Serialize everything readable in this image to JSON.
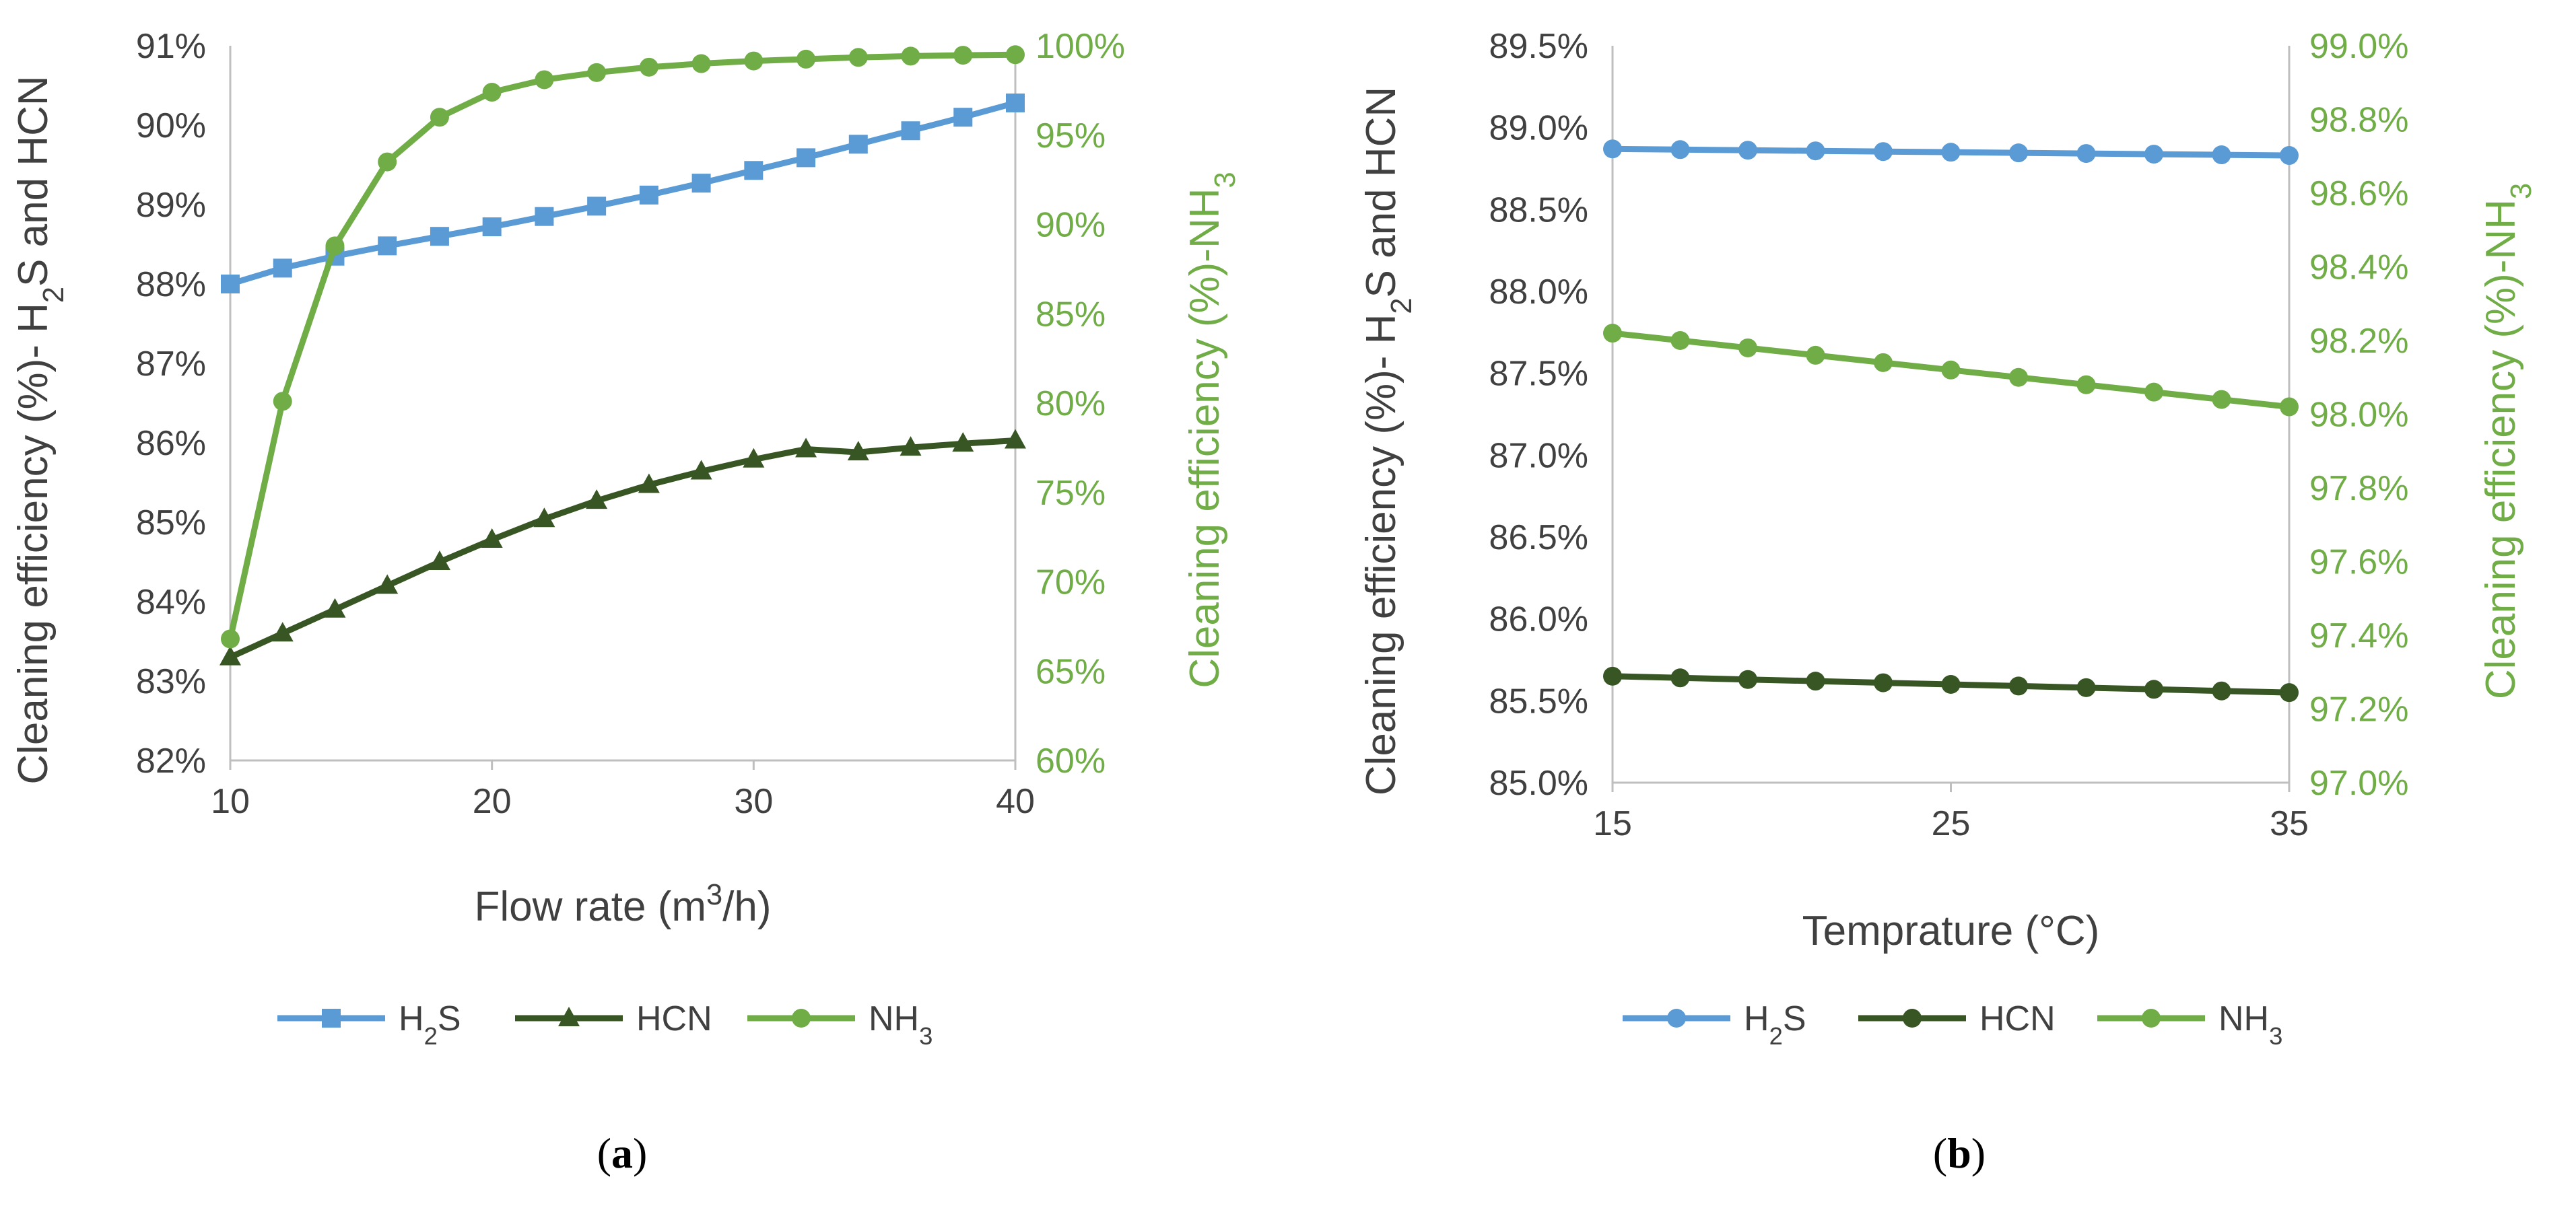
{
  "colors": {
    "h2s": "#5B9BD5",
    "hcn": "#375623",
    "nh3": "#70AD47",
    "axis_left": "#404040",
    "axis_right": "#70AD47",
    "axis_line": "#bfbfbf"
  },
  "chart_data": [
    {
      "type": "line",
      "caption": "a",
      "xlabel": {
        "text": "Flow rate (m",
        "sup": "3",
        "after": "/h)"
      },
      "ylabel_left": {
        "pre": "Cleaning efficiency (%)- H",
        "sub": "2",
        "post": "S and HCN"
      },
      "ylabel_right": {
        "pre": "Cleaning efficiency (%)-NH",
        "sub": "3",
        "post": ""
      },
      "xlim": [
        10,
        40
      ],
      "ylim_left": [
        82,
        91
      ],
      "ylim_right": [
        60,
        100
      ],
      "x_ticks": [
        "10",
        "20",
        "30",
        "40"
      ],
      "x_tick_values": [
        10,
        20,
        30,
        40
      ],
      "y_ticks_left": [
        "82%",
        "83%",
        "84%",
        "85%",
        "86%",
        "87%",
        "88%",
        "89%",
        "90%",
        "91%"
      ],
      "y_ticks_right": [
        "60%",
        "65%",
        "70%",
        "75%",
        "80%",
        "85%",
        "90%",
        "95%",
        "100%"
      ],
      "x": [
        10,
        12,
        14,
        16,
        18,
        20,
        22,
        24,
        26,
        28,
        30,
        32,
        34,
        36,
        38,
        40
      ],
      "series": [
        {
          "name": "H2S",
          "legend": {
            "pre": "H",
            "sub": "2",
            "post": "S"
          },
          "axis": "left",
          "marker": "square",
          "color_key": "h2s",
          "values": [
            88.0,
            88.2,
            88.35,
            88.48,
            88.6,
            88.72,
            88.85,
            88.98,
            89.12,
            89.27,
            89.43,
            89.59,
            89.76,
            89.93,
            90.1,
            90.28
          ]
        },
        {
          "name": "HCN",
          "legend": {
            "pre": "HCN",
            "sub": "",
            "post": ""
          },
          "axis": "left",
          "marker": "triangle",
          "color_key": "hcn",
          "values": [
            83.3,
            83.6,
            83.9,
            84.2,
            84.5,
            84.78,
            85.04,
            85.27,
            85.47,
            85.64,
            85.79,
            85.92,
            85.88,
            85.94,
            85.99,
            86.03
          ]
        },
        {
          "name": "NH3",
          "legend": {
            "pre": "NH",
            "sub": "3",
            "post": ""
          },
          "axis": "right",
          "marker": "circle",
          "color_key": "nh3",
          "values": [
            66.8,
            80.1,
            88.8,
            93.5,
            96.0,
            97.4,
            98.1,
            98.5,
            98.8,
            99.0,
            99.15,
            99.25,
            99.35,
            99.42,
            99.47,
            99.5
          ]
        }
      ]
    },
    {
      "type": "line",
      "caption": "b",
      "xlabel": {
        "text": "Temprature (°C)",
        "sup": "",
        "after": ""
      },
      "ylabel_left": {
        "pre": "Cleaning efficiency (%)- H",
        "sub": "2",
        "post": "S and HCN"
      },
      "ylabel_right": {
        "pre": "Cleaning efficiency (%)-NH",
        "sub": "3",
        "post": ""
      },
      "xlim": [
        15,
        35
      ],
      "ylim_left": [
        85.0,
        89.5
      ],
      "ylim_right": [
        97.0,
        99.0
      ],
      "x_ticks": [
        "15",
        "25",
        "35"
      ],
      "x_tick_values": [
        15,
        25,
        35
      ],
      "y_ticks_left": [
        "85.0%",
        "85.5%",
        "86.0%",
        "86.5%",
        "87.0%",
        "87.5%",
        "88.0%",
        "88.5%",
        "89.0%",
        "89.5%"
      ],
      "y_ticks_right": [
        "97.0%",
        "97.2%",
        "97.4%",
        "97.6%",
        "97.8%",
        "98.0%",
        "98.2%",
        "98.4%",
        "98.6%",
        "98.8%",
        "99.0%"
      ],
      "x": [
        15,
        17,
        19,
        21,
        23,
        25,
        27,
        29,
        31,
        33,
        35
      ],
      "series": [
        {
          "name": "H2S",
          "legend": {
            "pre": "H",
            "sub": "2",
            "post": "S"
          },
          "axis": "left",
          "marker": "circle",
          "color_key": "h2s",
          "values": [
            88.87,
            88.866,
            88.862,
            88.858,
            88.854,
            88.85,
            88.846,
            88.842,
            88.838,
            88.834,
            88.83
          ]
        },
        {
          "name": "HCN",
          "legend": {
            "pre": "HCN",
            "sub": "",
            "post": ""
          },
          "axis": "left",
          "marker": "circle",
          "color_key": "hcn",
          "values": [
            85.65,
            85.64,
            85.63,
            85.62,
            85.61,
            85.6,
            85.59,
            85.58,
            85.57,
            85.56,
            85.55
          ]
        },
        {
          "name": "NH3",
          "legend": {
            "pre": "NH",
            "sub": "3",
            "post": ""
          },
          "axis": "right",
          "marker": "circle",
          "color_key": "nh3",
          "values": [
            98.22,
            98.2,
            98.18,
            98.16,
            98.14,
            98.12,
            98.1,
            98.08,
            98.06,
            98.04,
            98.02
          ]
        }
      ]
    }
  ]
}
